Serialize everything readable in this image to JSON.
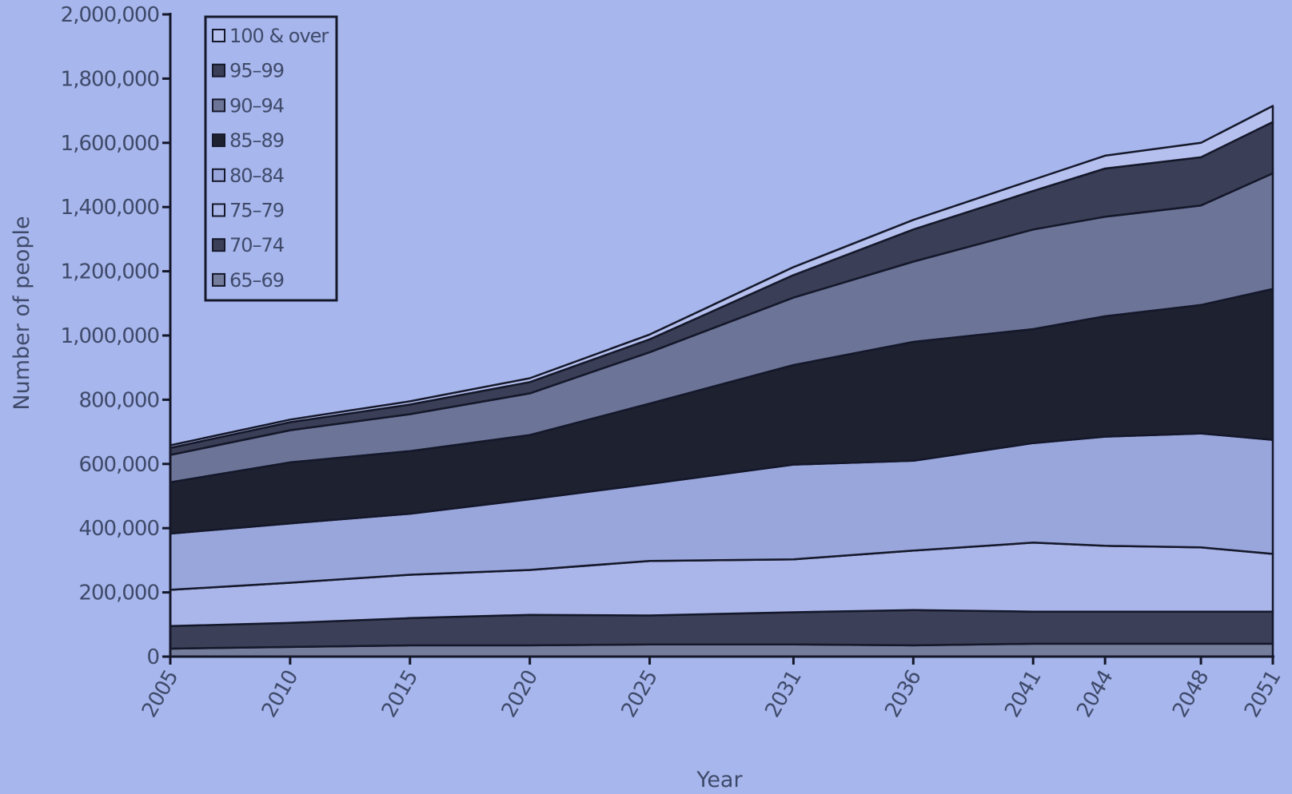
{
  "chart_data": {
    "type": "area",
    "stacked": true,
    "xlabel": "Year",
    "ylabel": "Number of people",
    "ylim": [
      0,
      2000000
    ],
    "yticks": [
      0,
      200000,
      400000,
      600000,
      800000,
      1000000,
      1200000,
      1400000,
      1600000,
      1800000,
      2000000
    ],
    "ytick_labels": [
      "0",
      "200,000",
      "400,000",
      "600,000",
      "800,000",
      "1,000,000",
      "1,200,000",
      "1,400,000",
      "1,600,000",
      "1,800,000",
      "2,000,000"
    ],
    "categories": [
      "2005",
      "2010",
      "2015",
      "2020",
      "2025",
      "2031",
      "2036",
      "2041",
      "2044",
      "2048",
      "2051"
    ],
    "x": [
      2005,
      2010,
      2015,
      2020,
      2025,
      2031,
      2036,
      2041,
      2044,
      2048,
      2051
    ],
    "legend_position": "top-left",
    "legend_order": [
      "100 & over",
      "95–99",
      "90–94",
      "85–89",
      "80–84",
      "75–79",
      "70–74",
      "65–69"
    ],
    "series": [
      {
        "name": "65–69",
        "color": "#757d9c",
        "values": [
          25000,
          30000,
          35000,
          35000,
          38000,
          38000,
          35000,
          40000,
          40000,
          40000,
          40000
        ]
      },
      {
        "name": "70–74",
        "color": "#3b4058",
        "values": [
          70000,
          75000,
          85000,
          95000,
          90000,
          100000,
          110000,
          100000,
          100000,
          100000,
          100000
        ]
      },
      {
        "name": "75–79",
        "color": "#aab6ea",
        "values": [
          113000,
          125000,
          135000,
          140000,
          170000,
          165000,
          185000,
          215000,
          205000,
          200000,
          180000
        ]
      },
      {
        "name": "80–84",
        "color": "#99a6dc",
        "values": [
          175000,
          185000,
          190000,
          220000,
          240000,
          295000,
          280000,
          310000,
          340000,
          355000,
          355000
        ]
      },
      {
        "name": "85–89",
        "color": "#1e2130",
        "values": [
          160000,
          190000,
          195000,
          200000,
          250000,
          310000,
          370000,
          355000,
          375000,
          400000,
          470000
        ]
      },
      {
        "name": "90–94",
        "color": "#6c7598",
        "values": [
          85000,
          100000,
          115000,
          130000,
          160000,
          210000,
          250000,
          310000,
          310000,
          310000,
          360000
        ]
      },
      {
        "name": "95–99",
        "color": "#3a3f57",
        "values": [
          22000,
          25000,
          30000,
          35000,
          40000,
          70000,
          100000,
          120000,
          150000,
          150000,
          160000
        ]
      },
      {
        "name": "100 & over",
        "color": "#b5c0ee",
        "values": [
          8000,
          8000,
          10000,
          12000,
          15000,
          25000,
          30000,
          35000,
          40000,
          45000,
          50000
        ]
      }
    ]
  }
}
